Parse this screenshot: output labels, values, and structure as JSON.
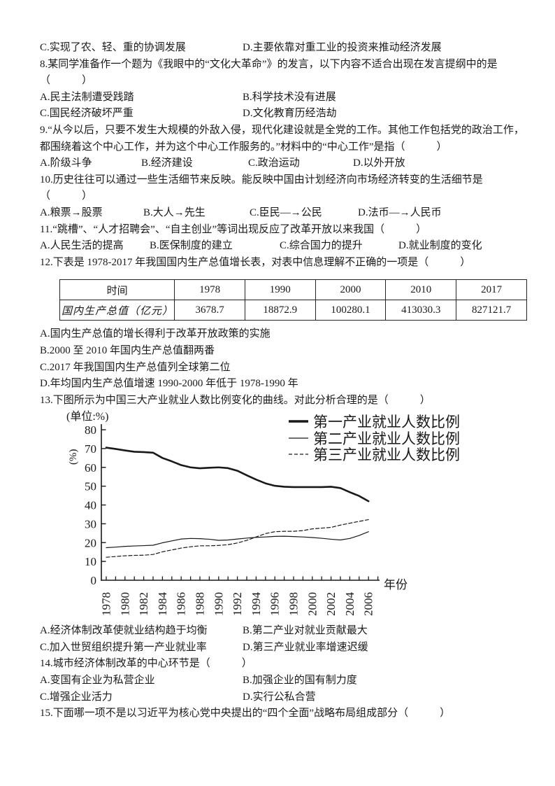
{
  "q7": {
    "optC": "C.实现了农、轻、重的协调发展",
    "optD": "D.主要依靠对重工业的投资来推动经济发展"
  },
  "q8": {
    "stem1": "8.某同学准备作一个题为《我眼中的“文化大革命”》的发言，以下内容不适合出现在发言提纲中的是",
    "stem2": "（　　　）",
    "optA": "A.民主法制遭受践踏",
    "optB": "B.科学技术没有进展",
    "optC": "C.国民经济破坏严重",
    "optD": "D.文化教育历经浩劫"
  },
  "q9": {
    "stem1": "9.“从今以后，只要不发生大规模的外敌入侵，现代化建设就是全党的工作。其他工作包括党的政治工作，",
    "stem2": "都围绕着这个中心工作，并为这个中心工作服务的。”材料中的“中心工作”是指（　　　）",
    "optA": "A.阶级斗争",
    "optB": "B.经济建设",
    "optC": "C.政治运动",
    "optD": "D.以外开放"
  },
  "q10": {
    "stem1": "10.历史往往可以通过一些生活细节来反映。能反映中国由计划经济向市场经济转变的生活细节是",
    "stem2": "（　　　）",
    "optA": "A.粮票→股票",
    "optB": "B.大人→先生",
    "optC": "C.臣民—→公民",
    "optD": "D.法币—→人民币"
  },
  "q11": {
    "stem": "11.“跳槽”、“人才招聘会”、“自主创业”等词出现反应了改革开放以来我国（　　　）",
    "optA": "A.人民生活的提高",
    "optB": "B.医保制度的建立",
    "optC": "C.综合国力的提升",
    "optD": "D.就业制度的变化"
  },
  "q12": {
    "stem": "12.下表是 1978-2017 年我国国内生产总值增长表，对表中信息理解不正确的一项是（　　　）",
    "table": {
      "headers": [
        "时间",
        "1978",
        "1990",
        "2000",
        "2010",
        "2017"
      ],
      "row_label": "国内生产总值（亿元）",
      "values": [
        "3678.7",
        "18872.9",
        "100280.1",
        "413030.3",
        "827121.7"
      ]
    },
    "optA": "A.国内生产总值的增长得利于改革开放政策的实施",
    "optB": "B.2000 至 2010 年国内生产总值翻两番",
    "optC": "C.2017 年我国国内生产总值列全球第二位",
    "optD": "D.年均国内生产总值增速 1990-2000 年低于 1978-1990 年"
  },
  "q13": {
    "stem": "13.下图所示为中国三大产业就业人数比例变化的曲线。对此分析合理的是（　　　）",
    "optA": "A.经济体制改革使就业结构趋于均衡",
    "optB": "B.第二产业对就业贡献最大",
    "optC": "C.加入世贸组织提升第一产业就业率",
    "optD": "D.第三产业就业率增速迟缓"
  },
  "q14": {
    "stem": "14.城市经济体制改革的中心环节是（　　　）",
    "optA": "A.变国有企业为私营企业",
    "optB": "B.加强企业的国有制力度",
    "optC": "C.增强企业活力",
    "optD": "D.实行公私合营"
  },
  "q15": {
    "stem": "15.下面哪一项不是以习近平为核心党中央提出的“四个全面”战略布局组成部分（　　　）"
  },
  "chart_data": {
    "type": "line",
    "title": "中国三大产业就业人数比例变化曲线",
    "unit_label": "(单位:%)",
    "y_axis_label": "(%)",
    "x_axis_label": "年份",
    "x_start_year": 1978,
    "x_end_year": 2006,
    "x_tick_labels": [
      "1978",
      "1980",
      "1982",
      "1984",
      "1986",
      "1988",
      "1990",
      "1992",
      "1994",
      "1996",
      "1998",
      "2000",
      "2002",
      "2004",
      "2006"
    ],
    "ylim": [
      0,
      80
    ],
    "y_ticks": [
      0,
      10,
      20,
      30,
      40,
      50,
      60,
      70,
      80
    ],
    "grid": false,
    "legend_position": "top-right",
    "series": [
      {
        "name": "第一产业就业人数比例",
        "style": "solid-thick",
        "values": [
          70.5,
          69.8,
          69.0,
          68.3,
          68.1,
          67.8,
          65.0,
          63.2,
          61.2,
          60.0,
          59.5,
          59.8,
          60.0,
          59.6,
          58.2,
          55.8,
          53.5,
          51.5,
          50.2,
          49.7,
          49.5,
          49.5,
          49.5,
          49.5,
          49.7,
          49.0,
          46.8,
          44.8,
          42.0
        ]
      },
      {
        "name": "第二产业就业人数比例",
        "style": "solid-thin",
        "values": [
          17.3,
          17.6,
          18.0,
          18.2,
          18.4,
          18.6,
          19.9,
          20.9,
          21.9,
          22.2,
          22.1,
          21.8,
          21.2,
          21.4,
          21.9,
          22.4,
          22.8,
          23.0,
          23.3,
          23.4,
          23.2,
          23.0,
          22.7,
          22.3,
          21.8,
          21.4,
          22.2,
          23.8,
          25.8
        ]
      },
      {
        "name": "第三产业就业人数比例",
        "style": "dashed",
        "values": [
          12.2,
          12.6,
          13.0,
          13.2,
          13.3,
          13.7,
          15.1,
          16.1,
          17.1,
          17.8,
          18.3,
          18.3,
          18.5,
          18.9,
          19.8,
          21.2,
          23.0,
          24.8,
          25.8,
          26.0,
          26.0,
          26.4,
          27.3,
          27.7,
          28.1,
          29.3,
          30.3,
          31.3,
          32.2
        ]
      }
    ]
  }
}
